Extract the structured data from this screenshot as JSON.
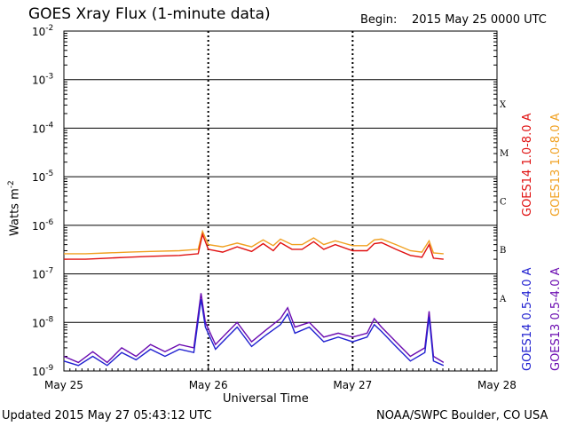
{
  "title": "GOES Xray Flux (1-minute data)",
  "begin_label": "Begin:",
  "begin_value": "2015 May 25 0000 UTC",
  "ylabel": "Watts m",
  "ylabel_sup": "-2",
  "xlabel": "Universal Time",
  "footer_left": "Updated 2015 May 27 05:43:12 UTC",
  "footer_right": "NOAA/SWPC Boulder, CO USA",
  "colors": {
    "goes14_long": "#e01010",
    "goes13_long": "#f0a020",
    "goes14_short": "#2020d0",
    "goes13_short": "#6a0ab0",
    "axis": "#000000"
  },
  "chart_data": {
    "type": "line",
    "title": "GOES Xray Flux (1-minute data)",
    "ylabel": "Watts m-2",
    "xlabel": "Universal Time",
    "y_scale": "log",
    "ylim": [
      1e-09,
      0.01
    ],
    "y_ticks": [
      {
        "value": 1e-09,
        "base": "10",
        "exp": "-9"
      },
      {
        "value": 1e-08,
        "base": "10",
        "exp": "-8"
      },
      {
        "value": 1e-07,
        "base": "10",
        "exp": "-7"
      },
      {
        "value": 1e-06,
        "base": "10",
        "exp": "-6"
      },
      {
        "value": 1e-05,
        "base": "10",
        "exp": "-5"
      },
      {
        "value": 0.0001,
        "base": "10",
        "exp": "-4"
      },
      {
        "value": 0.001,
        "base": "10",
        "exp": "-3"
      },
      {
        "value": 0.01,
        "base": "10",
        "exp": "-2"
      }
    ],
    "x_ticks": [
      "May 25",
      "May 26",
      "May 27",
      "May 28"
    ],
    "xlim_days": [
      0,
      3
    ],
    "flare_classes": [
      {
        "label": "A",
        "value": 1e-08
      },
      {
        "label": "B",
        "value": 1e-07
      },
      {
        "label": "C",
        "value": 1e-06
      },
      {
        "label": "M",
        "value": 1e-05
      },
      {
        "label": "X",
        "value": 0.0001
      }
    ],
    "grid": true,
    "legend": {
      "placement": "right",
      "entries": [
        {
          "name": "GOES14 1.0-8.0 A",
          "color": "#e01010"
        },
        {
          "name": "GOES13 1.0-8.0 A",
          "color": "#f0a020"
        },
        {
          "name": "GOES14 0.5-4.0 A",
          "color": "#2020d0"
        },
        {
          "name": "GOES13 0.5-4.0 A",
          "color": "#6a0ab0"
        }
      ]
    },
    "series": [
      {
        "name": "GOES13 1.0-8.0 A",
        "color": "#f0a020",
        "points": [
          [
            0.0,
            2.6e-07
          ],
          [
            0.15,
            2.6e-07
          ],
          [
            0.3,
            2.7e-07
          ],
          [
            0.45,
            2.8e-07
          ],
          [
            0.6,
            2.9e-07
          ],
          [
            0.8,
            3e-07
          ],
          [
            0.93,
            3.2e-07
          ],
          [
            0.96,
            7.5e-07
          ],
          [
            1.0,
            4e-07
          ],
          [
            1.1,
            3.6e-07
          ],
          [
            1.2,
            4.3e-07
          ],
          [
            1.3,
            3.6e-07
          ],
          [
            1.38,
            5e-07
          ],
          [
            1.45,
            3.8e-07
          ],
          [
            1.5,
            5.2e-07
          ],
          [
            1.58,
            4e-07
          ],
          [
            1.65,
            4e-07
          ],
          [
            1.73,
            5.5e-07
          ],
          [
            1.8,
            4e-07
          ],
          [
            1.88,
            4.8e-07
          ],
          [
            2.0,
            3.8e-07
          ],
          [
            2.1,
            3.8e-07
          ],
          [
            2.15,
            5e-07
          ],
          [
            2.2,
            5.2e-07
          ],
          [
            2.3,
            4e-07
          ],
          [
            2.4,
            3e-07
          ],
          [
            2.48,
            2.8e-07
          ],
          [
            2.53,
            4.8e-07
          ],
          [
            2.56,
            2.7e-07
          ],
          [
            2.63,
            2.6e-07
          ]
        ]
      },
      {
        "name": "GOES14 1.0-8.0 A",
        "color": "#e01010",
        "points": [
          [
            0.0,
            2e-07
          ],
          [
            0.15,
            2e-07
          ],
          [
            0.3,
            2.1e-07
          ],
          [
            0.45,
            2.2e-07
          ],
          [
            0.6,
            2.3e-07
          ],
          [
            0.8,
            2.4e-07
          ],
          [
            0.93,
            2.6e-07
          ],
          [
            0.96,
            6.5e-07
          ],
          [
            1.0,
            3.2e-07
          ],
          [
            1.1,
            2.8e-07
          ],
          [
            1.2,
            3.6e-07
          ],
          [
            1.3,
            2.9e-07
          ],
          [
            1.38,
            4.2e-07
          ],
          [
            1.45,
            3e-07
          ],
          [
            1.5,
            4.4e-07
          ],
          [
            1.58,
            3.2e-07
          ],
          [
            1.65,
            3.2e-07
          ],
          [
            1.73,
            4.6e-07
          ],
          [
            1.8,
            3.2e-07
          ],
          [
            1.88,
            4e-07
          ],
          [
            2.0,
            3e-07
          ],
          [
            2.1,
            3e-07
          ],
          [
            2.15,
            4.2e-07
          ],
          [
            2.2,
            4.4e-07
          ],
          [
            2.3,
            3.2e-07
          ],
          [
            2.4,
            2.4e-07
          ],
          [
            2.48,
            2.2e-07
          ],
          [
            2.53,
            4e-07
          ],
          [
            2.56,
            2.1e-07
          ],
          [
            2.63,
            2e-07
          ]
        ]
      },
      {
        "name": "GOES13 0.5-4.0 A",
        "color": "#6a0ab0",
        "points": [
          [
            0.0,
            2e-09
          ],
          [
            0.1,
            1.5e-09
          ],
          [
            0.2,
            2.5e-09
          ],
          [
            0.3,
            1.5e-09
          ],
          [
            0.4,
            3e-09
          ],
          [
            0.5,
            2e-09
          ],
          [
            0.6,
            3.5e-09
          ],
          [
            0.7,
            2.5e-09
          ],
          [
            0.8,
            3.5e-09
          ],
          [
            0.9,
            3e-09
          ],
          [
            0.95,
            4e-08
          ],
          [
            0.98,
            1e-08
          ],
          [
            1.05,
            3.5e-09
          ],
          [
            1.1,
            5e-09
          ],
          [
            1.2,
            1e-08
          ],
          [
            1.3,
            4e-09
          ],
          [
            1.4,
            7e-09
          ],
          [
            1.5,
            1.2e-08
          ],
          [
            1.55,
            2e-08
          ],
          [
            1.6,
            8e-09
          ],
          [
            1.7,
            1e-08
          ],
          [
            1.8,
            5e-09
          ],
          [
            1.9,
            6e-09
          ],
          [
            2.0,
            5e-09
          ],
          [
            2.1,
            6e-09
          ],
          [
            2.15,
            1.2e-08
          ],
          [
            2.2,
            8e-09
          ],
          [
            2.3,
            4e-09
          ],
          [
            2.4,
            2e-09
          ],
          [
            2.5,
            3e-09
          ],
          [
            2.53,
            1.7e-08
          ],
          [
            2.56,
            2e-09
          ],
          [
            2.63,
            1.5e-09
          ]
        ]
      },
      {
        "name": "GOES14 0.5-4.0 A",
        "color": "#2020d0",
        "points": [
          [
            0.0,
            1.6e-09
          ],
          [
            0.1,
            1.3e-09
          ],
          [
            0.2,
            2e-09
          ],
          [
            0.3,
            1.3e-09
          ],
          [
            0.4,
            2.4e-09
          ],
          [
            0.5,
            1.7e-09
          ],
          [
            0.6,
            2.8e-09
          ],
          [
            0.7,
            2e-09
          ],
          [
            0.8,
            2.8e-09
          ],
          [
            0.9,
            2.4e-09
          ],
          [
            0.95,
            3e-08
          ],
          [
            0.98,
            8e-09
          ],
          [
            1.05,
            2.8e-09
          ],
          [
            1.1,
            4e-09
          ],
          [
            1.2,
            8e-09
          ],
          [
            1.3,
            3.2e-09
          ],
          [
            1.4,
            5.5e-09
          ],
          [
            1.5,
            9e-09
          ],
          [
            1.55,
            1.5e-08
          ],
          [
            1.6,
            6e-09
          ],
          [
            1.7,
            8e-09
          ],
          [
            1.8,
            4e-09
          ],
          [
            1.9,
            5e-09
          ],
          [
            2.0,
            4e-09
          ],
          [
            2.1,
            5e-09
          ],
          [
            2.15,
            9e-09
          ],
          [
            2.2,
            6.5e-09
          ],
          [
            2.3,
            3.2e-09
          ],
          [
            2.4,
            1.6e-09
          ],
          [
            2.5,
            2.4e-09
          ],
          [
            2.53,
            1.3e-08
          ],
          [
            2.56,
            1.6e-09
          ],
          [
            2.63,
            1.3e-09
          ]
        ]
      }
    ]
  }
}
